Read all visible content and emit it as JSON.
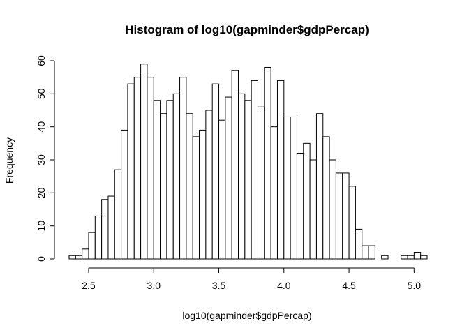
{
  "chart_data": {
    "type": "bar",
    "title": "Histogram of log10(gapminder$gdpPercap)",
    "xlabel": "log10(gapminder$gdpPercap)",
    "ylabel": "Frequency",
    "bin_width": 0.05,
    "bins_start": [
      2.35,
      2.4,
      2.45,
      2.5,
      2.55,
      2.6,
      2.65,
      2.7,
      2.75,
      2.8,
      2.85,
      2.9,
      2.95,
      3.0,
      3.05,
      3.1,
      3.15,
      3.2,
      3.25,
      3.3,
      3.35,
      3.4,
      3.45,
      3.5,
      3.55,
      3.6,
      3.65,
      3.7,
      3.75,
      3.8,
      3.85,
      3.9,
      3.95,
      4.0,
      4.05,
      4.1,
      4.15,
      4.2,
      4.25,
      4.3,
      4.35,
      4.4,
      4.45,
      4.5,
      4.55,
      4.6,
      4.65,
      4.7,
      4.75,
      4.8,
      4.85,
      4.9,
      4.95,
      5.0,
      5.05
    ],
    "values": [
      1,
      1,
      3,
      8,
      13,
      18,
      19,
      27,
      39,
      53,
      55,
      59,
      55,
      48,
      44,
      48,
      50,
      55,
      44,
      37,
      39,
      45,
      53,
      42,
      49,
      57,
      50,
      48,
      54,
      46,
      58,
      40,
      54,
      43,
      43,
      32,
      35,
      30,
      44,
      37,
      30,
      26,
      26,
      22,
      9,
      4,
      4,
      0,
      1,
      0,
      0,
      1,
      1,
      2,
      1
    ],
    "xlim": [
      2.35,
      5.1
    ],
    "ylim": [
      0,
      60
    ],
    "x_ticks": [
      "2.5",
      "3.0",
      "3.5",
      "4.0",
      "4.5",
      "5.0"
    ],
    "y_ticks": [
      "0",
      "10",
      "20",
      "30",
      "40",
      "50",
      "60"
    ],
    "grid": false,
    "legend": "none"
  }
}
